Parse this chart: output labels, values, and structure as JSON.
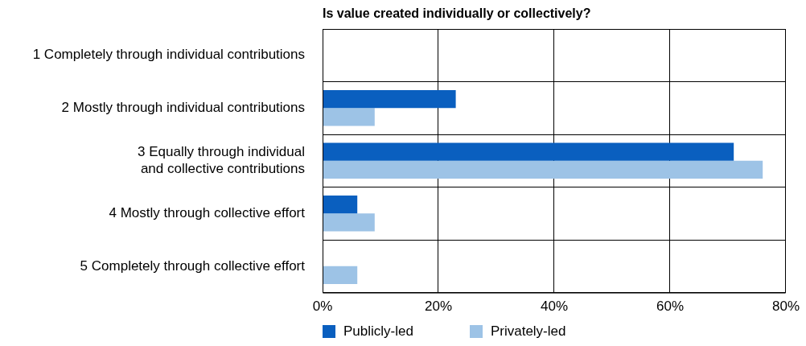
{
  "chart_data": {
    "type": "bar",
    "orientation": "horizontal",
    "title": "Is value created individually or collectively?",
    "categories": [
      "1 Completely through individual contributions",
      "2 Mostly through individual contributions",
      "3 Equally through individual and collective contributions",
      "4 Mostly through collective effort",
      "5 Completely through collective effort"
    ],
    "series": [
      {
        "name": "Publicly-led",
        "color": "#0a5fbf",
        "values": [
          0,
          23,
          71,
          6,
          0
        ]
      },
      {
        "name": "Privately-led",
        "color": "#9dc3e6",
        "values": [
          0,
          9,
          76,
          9,
          6
        ]
      }
    ],
    "xlim": [
      0,
      80
    ],
    "xticks": [
      {
        "value": 0,
        "label": "0%"
      },
      {
        "value": 20,
        "label": "20%"
      },
      {
        "value": 40,
        "label": "40%"
      },
      {
        "value": 60,
        "label": "60%"
      },
      {
        "value": 80,
        "label": "80%"
      }
    ],
    "grid": true,
    "legend": "bottom left"
  }
}
